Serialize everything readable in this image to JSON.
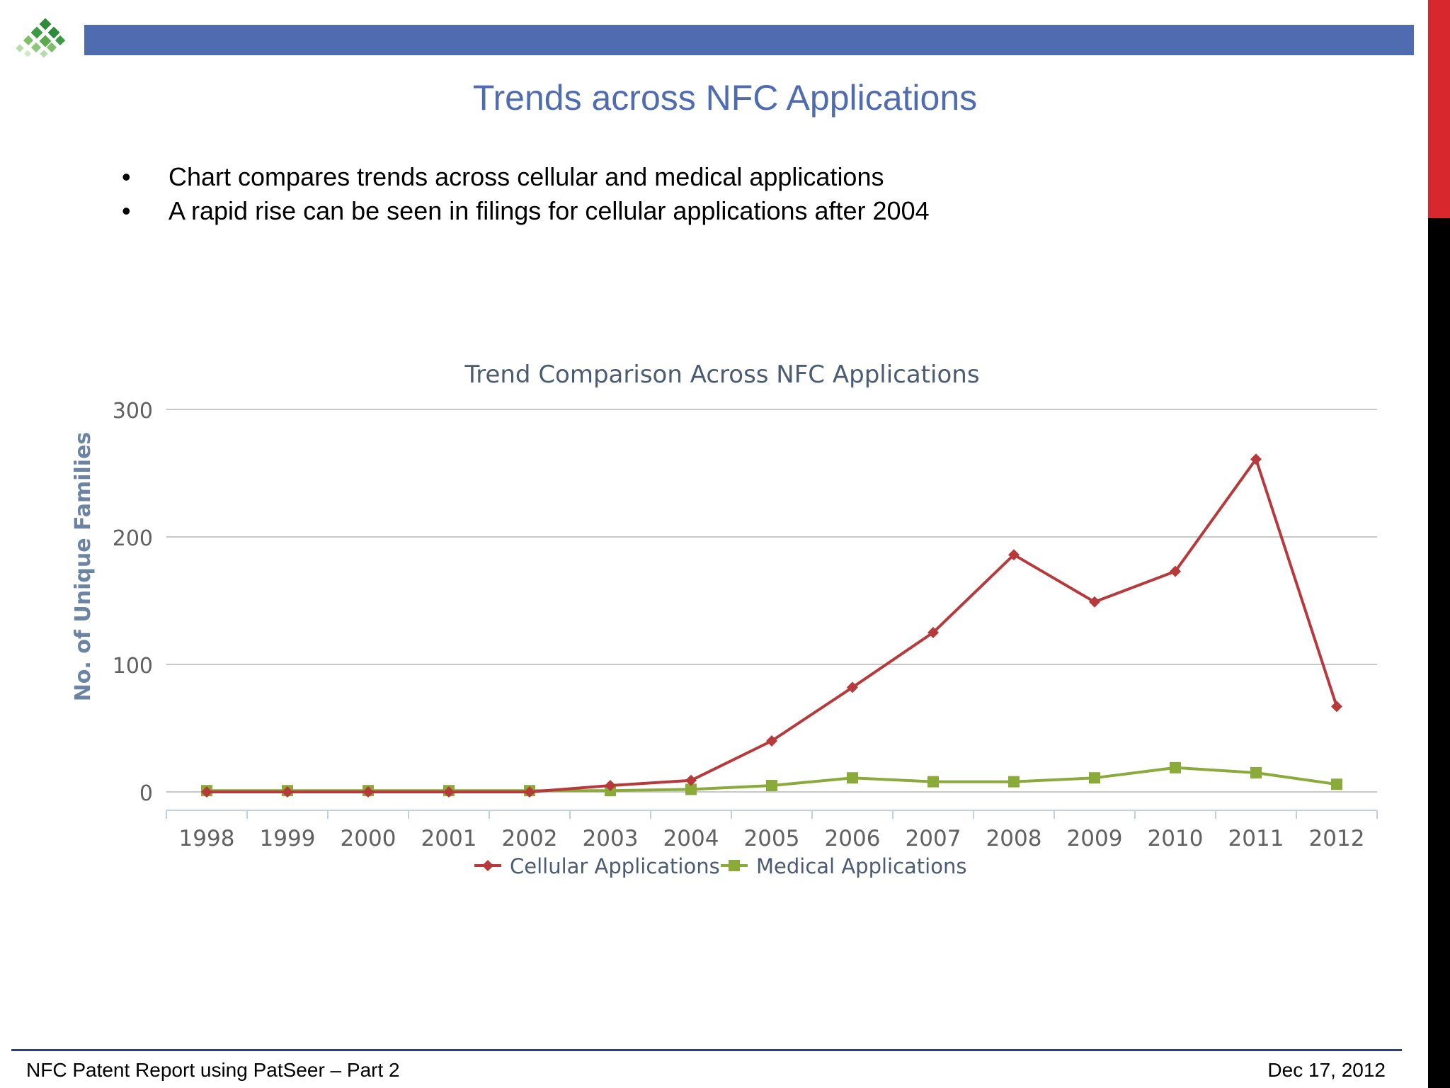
{
  "slide": {
    "title": "Trends across NFC Applications",
    "bullets": [
      "Chart compares trends across cellular and medical applications",
      "A rapid rise can be seen in filings for cellular applications after 2004"
    ]
  },
  "footer": {
    "left": "NFC Patent Report using PatSeer – Part 2",
    "right": "Dec 17, 2012"
  },
  "colors": {
    "accent_bar": "#4f6cb1",
    "side_red": "#d9272e",
    "cellular": "#b8393b",
    "medical": "#8aab3a"
  },
  "chart_data": {
    "type": "line",
    "title": "Trend Comparison Across NFC Applications",
    "xlabel": "",
    "ylabel": "No. of Unique Families",
    "ylim": [
      0,
      300
    ],
    "yticks": [
      0,
      100,
      200,
      300
    ],
    "grid": true,
    "legend": "bottom",
    "categories": [
      "1998",
      "1999",
      "2000",
      "2001",
      "2002",
      "2003",
      "2004",
      "2005",
      "2006",
      "2007",
      "2008",
      "2009",
      "2010",
      "2011",
      "2012"
    ],
    "series": [
      {
        "name": "Cellular Applications",
        "marker": "diamond",
        "color": "#b8393b",
        "values": [
          0,
          0,
          0,
          0,
          0,
          5,
          9,
          40,
          82,
          125,
          186,
          149,
          173,
          261,
          67
        ]
      },
      {
        "name": "Medical Applications",
        "marker": "square",
        "color": "#8aab3a",
        "values": [
          1,
          1,
          1,
          1,
          1,
          1,
          2,
          5,
          11,
          8,
          8,
          11,
          19,
          15,
          6
        ]
      }
    ]
  }
}
